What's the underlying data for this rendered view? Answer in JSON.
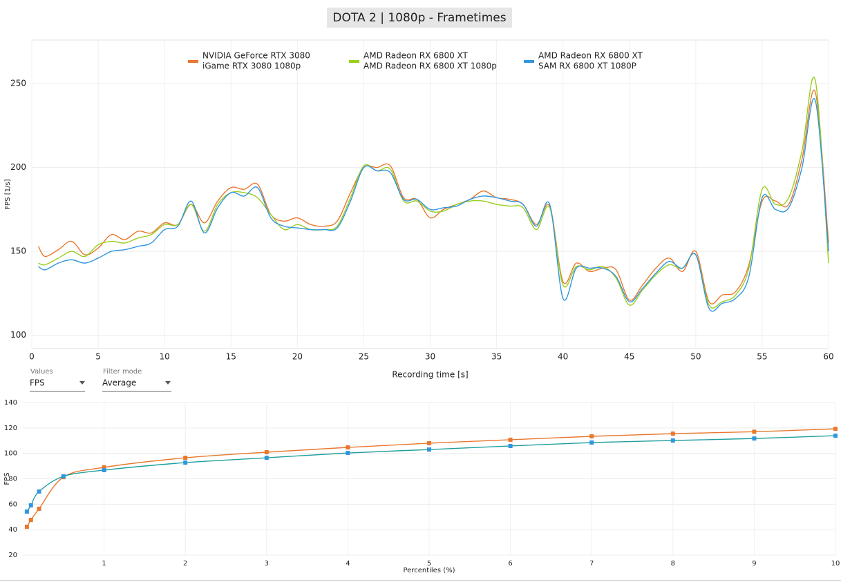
{
  "header": {
    "title": "DOTA 2 | 1080p - Frametimes"
  },
  "controls": [
    {
      "label": "Values",
      "value": "FPS"
    },
    {
      "label": "Filter mode",
      "value": "Average"
    }
  ],
  "chart_data": [
    {
      "type": "line",
      "x_label": "Recording time [s]",
      "y_label": "FPS [1/s]",
      "x": [
        0.5,
        1,
        2,
        3,
        4,
        5,
        6,
        7,
        8,
        9,
        10,
        11,
        12,
        13,
        14,
        15,
        16,
        17,
        18,
        19,
        20,
        21,
        22,
        23,
        24,
        25,
        26,
        27,
        28,
        29,
        30,
        31,
        32,
        33,
        34,
        35,
        36,
        37,
        38,
        39,
        40,
        41,
        42,
        43,
        44,
        45,
        46,
        47,
        48,
        49,
        50,
        51,
        52,
        53,
        54,
        55,
        56,
        57,
        58,
        59,
        60
      ],
      "series": [
        {
          "name": "NVIDIA GeForce RTX 3080",
          "subtitle": "iGame RTX 3080 1080p",
          "color": "#e8782e",
          "values": [
            153,
            147,
            151,
            156,
            148,
            152,
            160,
            157,
            162,
            161,
            167,
            166,
            178,
            167,
            180,
            188,
            187,
            190,
            172,
            168,
            170,
            166,
            165,
            168,
            185,
            200,
            200,
            201,
            182,
            181,
            170,
            175,
            178,
            181,
            186,
            182,
            181,
            178,
            166,
            177,
            132,
            143,
            138,
            140,
            139,
            121,
            130,
            140,
            146,
            138,
            150,
            120,
            124,
            126,
            142,
            180,
            180,
            178,
            205,
            245,
            155
          ]
        },
        {
          "name": "AMD Radeon RX 6800 XT",
          "subtitle": "AMD Radeon RX 6800 XT 1080p",
          "color": "#9acd1e",
          "values": [
            143,
            142,
            146,
            150,
            147,
            154,
            156,
            155,
            158,
            160,
            166,
            166,
            178,
            162,
            178,
            185,
            185,
            182,
            172,
            163,
            166,
            163,
            163,
            165,
            182,
            201,
            198,
            199,
            180,
            180,
            174,
            174,
            178,
            180,
            180,
            178,
            177,
            176,
            163,
            176,
            130,
            141,
            139,
            141,
            134,
            118,
            127,
            136,
            142,
            140,
            148,
            118,
            120,
            124,
            140,
            187,
            178,
            182,
            210,
            252,
            143
          ]
        },
        {
          "name": "AMD Radeon RX 6800 XT",
          "subtitle": "SAM RX 6800 XT 1080P",
          "color": "#2f96e0",
          "values": [
            141,
            139,
            143,
            145,
            143,
            146,
            150,
            151,
            153,
            155,
            163,
            165,
            180,
            161,
            176,
            185,
            183,
            188,
            170,
            165,
            164,
            163,
            163,
            164,
            180,
            200,
            198,
            197,
            181,
            181,
            175,
            176,
            177,
            181,
            183,
            182,
            180,
            178,
            165,
            178,
            122,
            140,
            140,
            140,
            135,
            120,
            128,
            137,
            144,
            140,
            148,
            116,
            119,
            122,
            135,
            182,
            175,
            176,
            200,
            240,
            150
          ]
        }
      ],
      "xlim": [
        0,
        60
      ],
      "xticks": [
        0,
        5,
        10,
        15,
        20,
        25,
        30,
        35,
        40,
        45,
        50,
        55,
        60
      ],
      "ylim": [
        92,
        276
      ],
      "yticks": [
        100,
        150,
        200,
        250
      ],
      "grid": true
    },
    {
      "type": "line",
      "x_label": "Percentiles (%)",
      "y_label": "FPS",
      "x": [
        0.05,
        0.1,
        0.2,
        0.5,
        1,
        2,
        3,
        4,
        5,
        6,
        7,
        8,
        9,
        10
      ],
      "series": [
        {
          "color": "#e8782e",
          "line_color": "#e8782e",
          "values": [
            42.3,
            47.7,
            56.4,
            81.3,
            89,
            96.5,
            100.9,
            104.7,
            108,
            110.7,
            113.4,
            115.5,
            117,
            119.3
          ]
        },
        {
          "color": "#2f96e0",
          "line_color": "#1e9e9e",
          "values": [
            54.2,
            59.1,
            70,
            81.9,
            86.8,
            92.7,
            96.5,
            100.3,
            103,
            105.8,
            108.5,
            110.1,
            111.7,
            113.9
          ]
        }
      ],
      "xlim": [
        0,
        10
      ],
      "xticks": [
        1,
        2,
        3,
        4,
        5,
        6,
        7,
        8,
        9,
        10
      ],
      "ylim": [
        20,
        140
      ],
      "yticks": [
        20,
        40,
        60,
        80,
        100,
        120,
        140
      ],
      "grid": true
    }
  ]
}
